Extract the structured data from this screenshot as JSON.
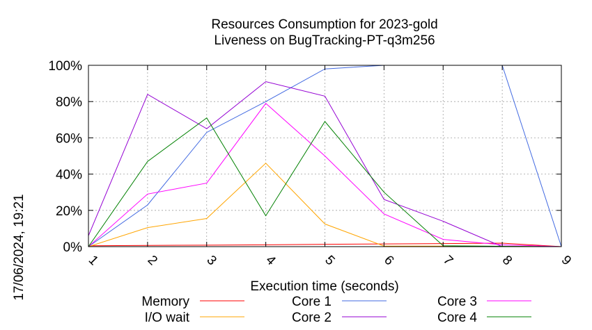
{
  "chart_data": {
    "type": "line",
    "title_line1": "Resources Consumption for 2023-gold",
    "title_line2": "Liveness on BugTracking-PT-q3m256",
    "xlabel": "Execution time (seconds)",
    "ylabel": "",
    "timestamp": "17/06/2024, 19:21",
    "x": [
      1,
      2,
      3,
      4,
      5,
      6,
      7,
      8,
      9
    ],
    "xlim": [
      1,
      9
    ],
    "ylim": [
      0,
      100
    ],
    "y_ticks": [
      "0%",
      "20%",
      "40%",
      "60%",
      "80%",
      "100%"
    ],
    "x_ticks": [
      "1",
      "2",
      "3",
      "4",
      "5",
      "6",
      "7",
      "8",
      "9"
    ],
    "grid": true,
    "legend_position": "bottom",
    "series": [
      {
        "name": "Memory",
        "color": "#ff0000",
        "values": [
          0.5,
          0.7,
          0.8,
          1.0,
          1.3,
          1.5,
          1.7,
          1.9,
          0
        ]
      },
      {
        "name": "I/O wait",
        "color": "#ffa500",
        "values": [
          0,
          10.5,
          15.5,
          46,
          12.5,
          0.3,
          0.3,
          0.2,
          0
        ]
      },
      {
        "name": "Core 1",
        "color": "#4169e1",
        "values": [
          0,
          23,
          63,
          80,
          98,
          100,
          100,
          100,
          0
        ]
      },
      {
        "name": "Core 2",
        "color": "#9400d3",
        "values": [
          6,
          84,
          65,
          91,
          83,
          26,
          14,
          0,
          0
        ]
      },
      {
        "name": "Core 3",
        "color": "#ff00ff",
        "values": [
          0,
          29,
          35,
          79,
          50,
          18,
          4,
          1,
          0
        ]
      },
      {
        "name": "Core 4",
        "color": "#008000",
        "values": [
          0,
          47,
          71,
          17,
          69,
          30,
          0.5,
          0.2,
          0
        ]
      }
    ]
  }
}
